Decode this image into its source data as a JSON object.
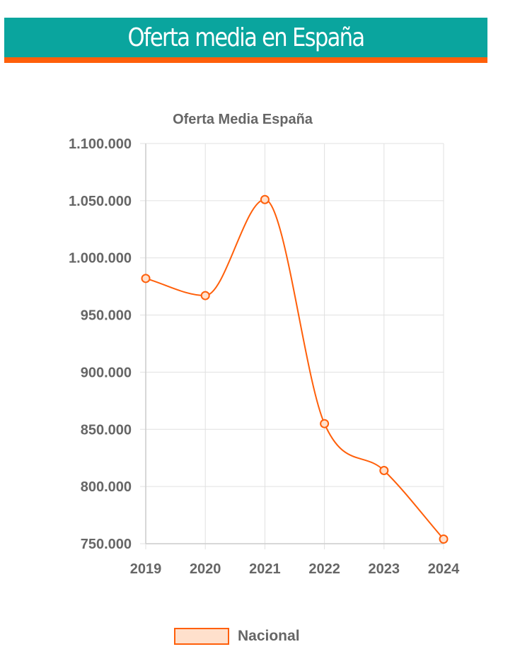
{
  "header": {
    "title": "Oferta media en España"
  },
  "colors": {
    "banner_bg": "#0aa59e",
    "banner_accent": "#ff5f0a",
    "series_line": "#ff5f0a",
    "series_fill": "#ffe0cc",
    "grid": "#e0e0e0",
    "text": "#666666"
  },
  "chart_data": {
    "type": "line",
    "title": "Oferta Media España",
    "categories": [
      "2019",
      "2020",
      "2021",
      "2022",
      "2023",
      "2024"
    ],
    "series": [
      {
        "name": "Nacional",
        "values": [
          982000,
          967000,
          1051000,
          855000,
          814000,
          754000
        ]
      }
    ],
    "ylim": [
      750000,
      1100000
    ],
    "y_ticks": [
      {
        "value": 1100000,
        "label": "1.100.000"
      },
      {
        "value": 1050000,
        "label": "1.050.000"
      },
      {
        "value": 1000000,
        "label": "1.000.000"
      },
      {
        "value": 950000,
        "label": "950.000"
      },
      {
        "value": 900000,
        "label": "900.000"
      },
      {
        "value": 850000,
        "label": "850.000"
      },
      {
        "value": 800000,
        "label": "800.000"
      },
      {
        "value": 750000,
        "label": "750.000"
      }
    ],
    "xlabel": "",
    "ylabel": "",
    "grid": true,
    "legend_position": "bottom",
    "smooth": true
  }
}
